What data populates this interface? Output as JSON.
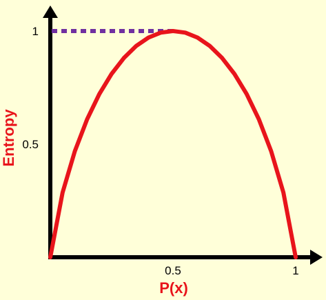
{
  "chart_data": {
    "type": "line",
    "title": "",
    "xlabel": "P(x)",
    "ylabel": "Entropy",
    "xlim": [
      0,
      1
    ],
    "ylim": [
      0,
      1
    ],
    "x_ticks": [
      "0.5",
      "1"
    ],
    "y_ticks": [
      "0.5",
      "1"
    ],
    "grid": false,
    "legend": "none",
    "series": [
      {
        "color": "#E8141B",
        "x": [
          0,
          0.05,
          0.1,
          0.15,
          0.2,
          0.25,
          0.3,
          0.35,
          0.4,
          0.45,
          0.5,
          0.55,
          0.6,
          0.65,
          0.7,
          0.75,
          0.8,
          0.85,
          0.9,
          0.95,
          1
        ],
        "y": [
          0,
          0.286,
          0.469,
          0.61,
          0.722,
          0.811,
          0.881,
          0.934,
          0.971,
          0.993,
          1,
          0.993,
          0.971,
          0.934,
          0.881,
          0.811,
          0.722,
          0.61,
          0.469,
          0.286,
          0
        ]
      }
    ],
    "reference_line": {
      "from_x": 0,
      "to_x": 0.5,
      "y": 1,
      "style": "dotted",
      "color": "#7030A0"
    }
  }
}
